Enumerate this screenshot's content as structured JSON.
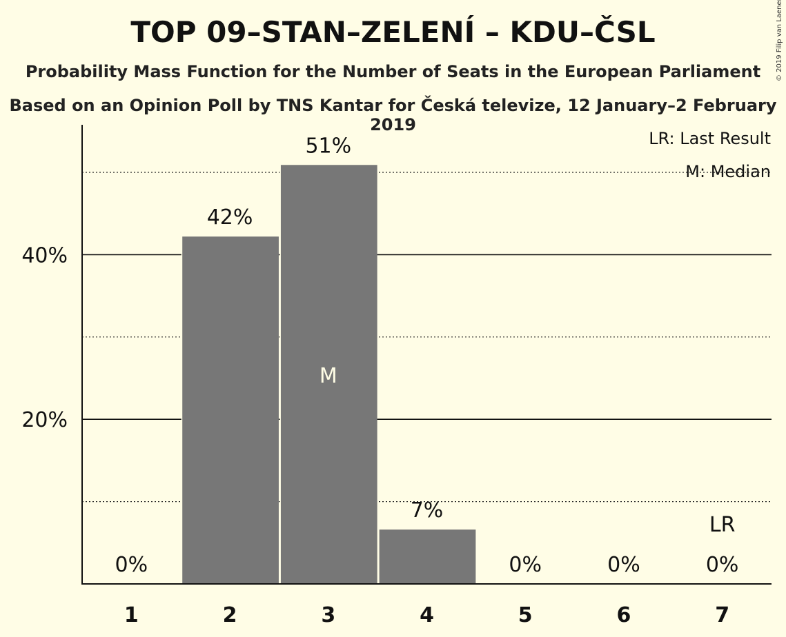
{
  "chart_data": {
    "type": "bar",
    "title": "TOP 09–STAN–ZELENÍ – KDU–ČSL",
    "subtitle": "Probability Mass Function for the Number of Seats in the European Parliament",
    "subtitle2": "Based on an Opinion Poll by TNS Kantar for Česká televize, 12 January–2 February 2019",
    "categories": [
      "1",
      "2",
      "3",
      "4",
      "5",
      "6",
      "7"
    ],
    "values": [
      0,
      42.2,
      50.9,
      6.6,
      0,
      0,
      0
    ],
    "value_labels": [
      "0%",
      "42%",
      "51%",
      "7%",
      "0%",
      "0%",
      "0%"
    ],
    "ylim": [
      0,
      56
    ],
    "y_ticks": [
      20,
      40
    ],
    "y_tick_labels": [
      "20%",
      "40%"
    ],
    "minor_gridlines": [
      10,
      30,
      50
    ],
    "median_index": 2,
    "median_marker": "M",
    "last_result_index": 6,
    "last_result_marker": "LR",
    "legend": {
      "position": "top-right",
      "items": [
        "LR: Last Result",
        "M: Median"
      ]
    },
    "bar_color": "#777777"
  },
  "copyright": "© 2019 Filip van Laenen"
}
